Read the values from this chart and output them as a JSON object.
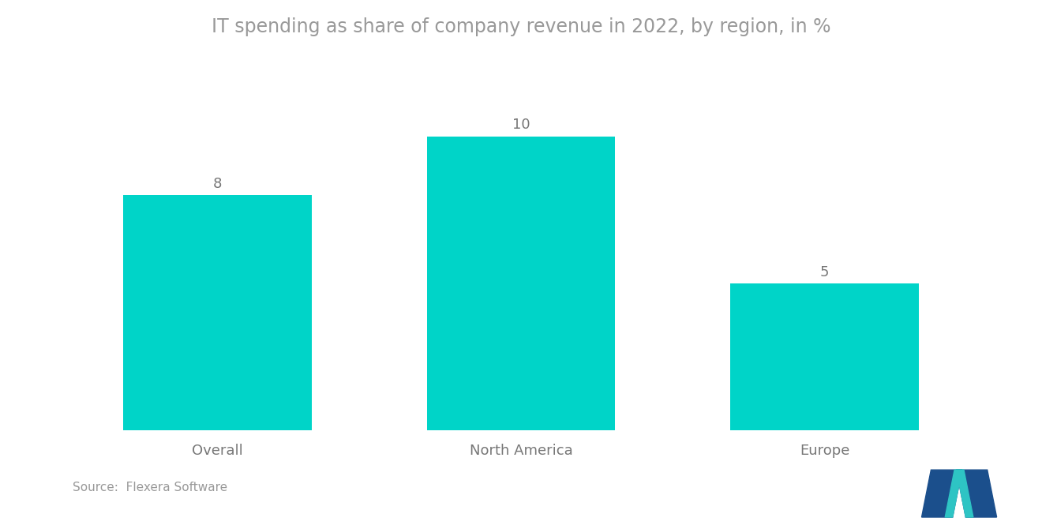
{
  "title": "IT spending as share of company revenue in 2022, by region, in %",
  "categories": [
    "Overall",
    "North America",
    "Europe"
  ],
  "values": [
    8,
    10,
    5
  ],
  "bar_color": "#00D4C8",
  "title_fontsize": 17,
  "label_fontsize": 13,
  "value_fontsize": 13,
  "source_text": "Source:  Flexera Software",
  "source_fontsize": 11,
  "background_color": "#FFFFFF",
  "ylim": [
    0,
    12.5
  ],
  "bar_width": 0.62,
  "title_color": "#999999",
  "label_color": "#777777",
  "value_color": "#777777"
}
